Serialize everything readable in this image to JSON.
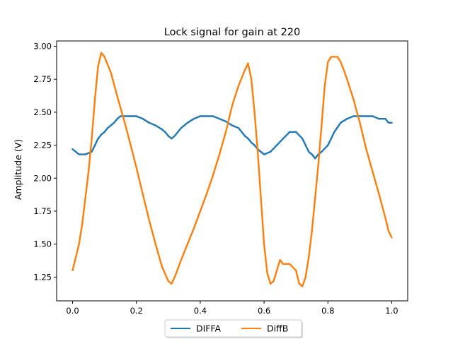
{
  "chart_data": {
    "type": "line",
    "title": "Lock signal for gain at 220",
    "xlabel": "",
    "ylabel": "Amplitude (V)",
    "xlim": [
      -0.05,
      1.05
    ],
    "ylim": [
      1.07,
      3.04
    ],
    "xticks": [
      0.0,
      0.2,
      0.4,
      0.6,
      0.8,
      1.0
    ],
    "xtick_labels": [
      "0.0",
      "0.2",
      "0.4",
      "0.6",
      "0.8",
      "1.0"
    ],
    "yticks": [
      1.25,
      1.5,
      1.75,
      2.0,
      2.25,
      2.5,
      2.75,
      3.0
    ],
    "ytick_labels": [
      "1.25",
      "1.50",
      "1.75",
      "2.00",
      "2.25",
      "2.50",
      "2.75",
      "3.00"
    ],
    "grid": false,
    "legend": {
      "placement": "bottom-center",
      "columns": 2
    },
    "series": [
      {
        "name": "DIFFA",
        "color": "#1f77b4",
        "x": [
          0.0,
          0.01,
          0.02,
          0.04,
          0.06,
          0.07,
          0.08,
          0.09,
          0.1,
          0.11,
          0.12,
          0.13,
          0.14,
          0.15,
          0.16,
          0.18,
          0.2,
          0.22,
          0.24,
          0.26,
          0.28,
          0.29,
          0.3,
          0.31,
          0.32,
          0.33,
          0.34,
          0.35,
          0.36,
          0.38,
          0.4,
          0.42,
          0.44,
          0.46,
          0.48,
          0.5,
          0.52,
          0.53,
          0.54,
          0.55,
          0.56,
          0.57,
          0.58,
          0.59,
          0.6,
          0.62,
          0.64,
          0.66,
          0.68,
          0.7,
          0.72,
          0.73,
          0.74,
          0.75,
          0.76,
          0.77,
          0.78,
          0.8,
          0.82,
          0.84,
          0.86,
          0.88,
          0.9,
          0.92,
          0.94,
          0.96,
          0.98,
          0.99,
          1.0
        ],
        "y": [
          2.22,
          2.2,
          2.18,
          2.18,
          2.2,
          2.25,
          2.3,
          2.33,
          2.35,
          2.38,
          2.4,
          2.42,
          2.45,
          2.47,
          2.47,
          2.47,
          2.47,
          2.45,
          2.42,
          2.4,
          2.37,
          2.35,
          2.32,
          2.3,
          2.32,
          2.35,
          2.38,
          2.4,
          2.42,
          2.45,
          2.47,
          2.47,
          2.47,
          2.45,
          2.43,
          2.4,
          2.38,
          2.35,
          2.32,
          2.3,
          2.27,
          2.25,
          2.22,
          2.2,
          2.18,
          2.2,
          2.25,
          2.3,
          2.35,
          2.35,
          2.3,
          2.25,
          2.2,
          2.18,
          2.15,
          2.18,
          2.2,
          2.25,
          2.35,
          2.42,
          2.45,
          2.47,
          2.47,
          2.47,
          2.47,
          2.45,
          2.45,
          2.42,
          2.42
        ]
      },
      {
        "name": "DiffB",
        "color": "#ff7f0e",
        "x": [
          0.0,
          0.01,
          0.02,
          0.03,
          0.04,
          0.05,
          0.06,
          0.07,
          0.08,
          0.09,
          0.1,
          0.12,
          0.14,
          0.16,
          0.18,
          0.2,
          0.22,
          0.24,
          0.26,
          0.28,
          0.3,
          0.31,
          0.32,
          0.34,
          0.36,
          0.38,
          0.4,
          0.42,
          0.44,
          0.46,
          0.48,
          0.5,
          0.52,
          0.54,
          0.55,
          0.56,
          0.57,
          0.58,
          0.59,
          0.6,
          0.61,
          0.62,
          0.63,
          0.64,
          0.65,
          0.66,
          0.68,
          0.7,
          0.71,
          0.72,
          0.73,
          0.74,
          0.75,
          0.76,
          0.77,
          0.78,
          0.79,
          0.8,
          0.81,
          0.82,
          0.83,
          0.84,
          0.85,
          0.86,
          0.88,
          0.9,
          0.92,
          0.94,
          0.96,
          0.98,
          0.99,
          1.0
        ],
        "y": [
          1.3,
          1.4,
          1.5,
          1.65,
          1.85,
          2.05,
          2.3,
          2.6,
          2.85,
          2.95,
          2.92,
          2.8,
          2.62,
          2.45,
          2.27,
          2.08,
          1.88,
          1.68,
          1.5,
          1.33,
          1.22,
          1.2,
          1.25,
          1.38,
          1.5,
          1.62,
          1.75,
          1.88,
          2.02,
          2.18,
          2.35,
          2.55,
          2.7,
          2.82,
          2.87,
          2.75,
          2.5,
          2.2,
          1.85,
          1.5,
          1.28,
          1.2,
          1.22,
          1.3,
          1.38,
          1.35,
          1.35,
          1.3,
          1.2,
          1.18,
          1.25,
          1.4,
          1.6,
          1.85,
          2.1,
          2.4,
          2.7,
          2.88,
          2.92,
          2.92,
          2.92,
          2.88,
          2.82,
          2.75,
          2.6,
          2.42,
          2.22,
          2.05,
          1.88,
          1.7,
          1.6,
          1.55
        ]
      }
    ]
  }
}
